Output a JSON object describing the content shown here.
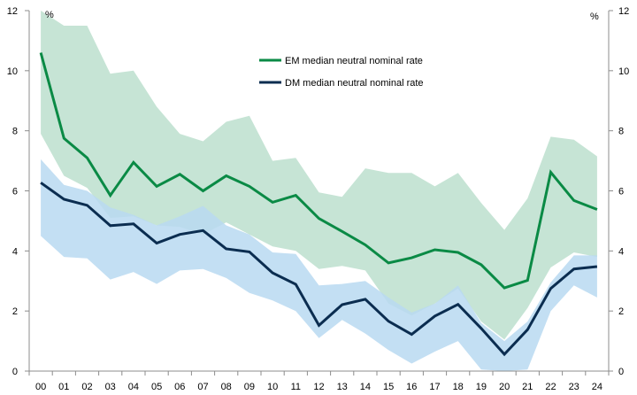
{
  "chart_data": {
    "type": "area",
    "title": "",
    "xlabel": "",
    "ylabel": "%",
    "ylabel_right": "%",
    "ylim": [
      0,
      12
    ],
    "yticks": [
      "0",
      "2",
      "4",
      "6",
      "8",
      "10",
      "12"
    ],
    "grid": false,
    "legend_position": "top-center",
    "categories": [
      "00",
      "01",
      "02",
      "03",
      "04",
      "05",
      "06",
      "07",
      "08",
      "09",
      "10",
      "11",
      "12",
      "13",
      "14",
      "15",
      "16",
      "17",
      "18",
      "19",
      "20",
      "21",
      "22",
      "23",
      "24"
    ],
    "series": [
      {
        "name": "EM median neutral nominal rate",
        "color": "#0a8a45",
        "band_color": "#c6e4d5",
        "values": [
          10.6,
          7.75,
          7.1,
          5.85,
          6.95,
          6.15,
          6.55,
          6.0,
          6.5,
          6.15,
          5.62,
          5.85,
          5.08,
          4.65,
          4.2,
          3.6,
          3.77,
          4.04,
          3.95,
          3.54,
          2.77,
          3.02,
          6.62,
          5.68,
          5.38
        ],
        "band_upper": [
          12.0,
          11.5,
          11.5,
          9.9,
          10.0,
          8.8,
          7.9,
          7.65,
          8.3,
          8.5,
          7.0,
          7.1,
          5.95,
          5.8,
          6.75,
          6.6,
          6.6,
          6.15,
          6.6,
          5.6,
          4.7,
          5.75,
          7.8,
          7.7,
          7.15
        ],
        "band_lower": [
          7.9,
          6.5,
          6.1,
          5.1,
          5.15,
          4.85,
          4.8,
          4.55,
          4.95,
          4.55,
          4.15,
          4.0,
          3.4,
          3.5,
          3.35,
          2.25,
          1.85,
          2.25,
          2.75,
          1.65,
          1.05,
          2.1,
          3.45,
          3.95,
          3.8
        ]
      },
      {
        "name": "DM median neutral nominal rate",
        "color": "#0b2d50",
        "band_color": "#b9d9f1",
        "values": [
          6.27,
          5.72,
          5.52,
          4.84,
          4.9,
          4.26,
          4.55,
          4.68,
          4.07,
          3.97,
          3.27,
          2.89,
          1.52,
          2.21,
          2.39,
          1.66,
          1.22,
          1.83,
          2.22,
          1.42,
          0.56,
          1.38,
          2.75,
          3.4,
          3.48
        ],
        "band_upper": [
          7.05,
          6.2,
          6.0,
          5.45,
          5.2,
          4.85,
          5.15,
          5.5,
          4.85,
          4.55,
          3.95,
          3.9,
          2.85,
          2.9,
          3.0,
          2.45,
          1.95,
          2.25,
          2.85,
          1.6,
          1.0,
          1.65,
          2.95,
          3.85,
          3.85
        ],
        "band_lower": [
          4.5,
          3.8,
          3.75,
          3.05,
          3.3,
          2.9,
          3.35,
          3.4,
          3.1,
          2.6,
          2.35,
          2.0,
          1.1,
          1.7,
          1.25,
          0.7,
          0.25,
          0.65,
          1.0,
          0.05,
          0.0,
          0.05,
          2.0,
          2.85,
          2.45
        ]
      }
    ]
  }
}
